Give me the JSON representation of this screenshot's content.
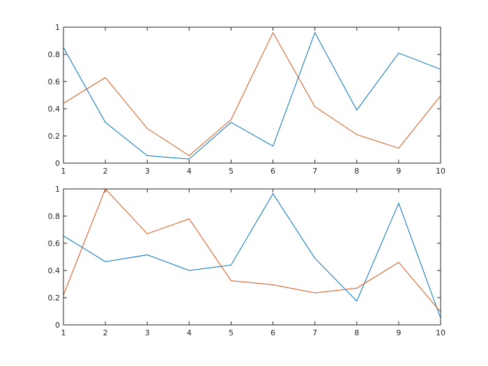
{
  "chart_data": [
    {
      "type": "line",
      "x": [
        1,
        2,
        3,
        4,
        5,
        6,
        7,
        8,
        9,
        10
      ],
      "series": [
        {
          "color": "#0072bd",
          "values": [
            0.85,
            0.3,
            0.055,
            0.03,
            0.3,
            0.125,
            0.96,
            0.39,
            0.81,
            0.69
          ]
        },
        {
          "color": "#d95319",
          "values": [
            0.44,
            0.63,
            0.255,
            0.055,
            0.32,
            0.96,
            0.415,
            0.21,
            0.11,
            0.495
          ]
        }
      ],
      "xlim": [
        1,
        10
      ],
      "xticks": [
        1,
        2,
        3,
        4,
        5,
        6,
        7,
        8,
        9,
        10
      ],
      "ylim": [
        0,
        1
      ],
      "yticks": [
        0,
        0.2,
        0.4,
        0.6,
        0.8,
        1
      ]
    },
    {
      "type": "line",
      "x": [
        1,
        2,
        3,
        4,
        5,
        6,
        7,
        8,
        9,
        10
      ],
      "series": [
        {
          "color": "#0072bd",
          "values": [
            0.655,
            0.465,
            0.515,
            0.4,
            0.44,
            0.965,
            0.49,
            0.175,
            0.895,
            0.05
          ]
        },
        {
          "color": "#d95319",
          "values": [
            0.22,
            1.0,
            0.67,
            0.78,
            0.325,
            0.295,
            0.235,
            0.27,
            0.46,
            0.095
          ]
        }
      ],
      "xlim": [
        1,
        10
      ],
      "xticks": [
        1,
        2,
        3,
        4,
        5,
        6,
        7,
        8,
        9,
        10
      ],
      "ylim": [
        0,
        1
      ],
      "yticks": [
        0,
        0.2,
        0.4,
        0.6,
        0.8,
        1
      ]
    }
  ]
}
